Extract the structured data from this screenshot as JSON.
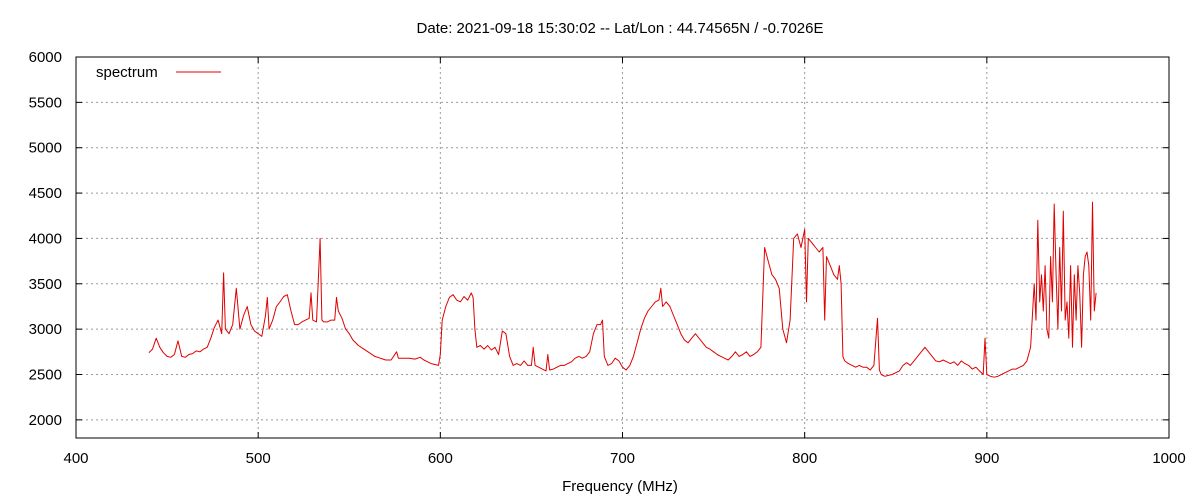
{
  "chart_data": {
    "type": "line",
    "title": "Date: 2021-09-18 15:30:02  --  Lat/Lon : 44.74565N / -0.7026E",
    "xlabel": "Frequency (MHz)",
    "ylabel": "",
    "xlim": [
      400,
      1000
    ],
    "ylim": [
      1800,
      6000
    ],
    "x_ticks": [
      400,
      500,
      600,
      700,
      800,
      900,
      1000
    ],
    "y_ticks": [
      2000,
      2500,
      3000,
      3500,
      4000,
      4500,
      5000,
      5500,
      6000
    ],
    "grid": true,
    "legend_position": "top-left",
    "series": [
      {
        "name": "spectrum",
        "color": "#e00000",
        "points": [
          [
            440,
            2740
          ],
          [
            442,
            2780
          ],
          [
            444,
            2900
          ],
          [
            446,
            2800
          ],
          [
            448,
            2740
          ],
          [
            450,
            2700
          ],
          [
            452,
            2690
          ],
          [
            454,
            2720
          ],
          [
            456,
            2870
          ],
          [
            458,
            2700
          ],
          [
            460,
            2690
          ],
          [
            462,
            2720
          ],
          [
            464,
            2730
          ],
          [
            466,
            2760
          ],
          [
            468,
            2750
          ],
          [
            470,
            2780
          ],
          [
            472,
            2800
          ],
          [
            474,
            2900
          ],
          [
            476,
            3020
          ],
          [
            478,
            3100
          ],
          [
            480,
            2950
          ],
          [
            481,
            3620
          ],
          [
            482,
            3000
          ],
          [
            484,
            2950
          ],
          [
            486,
            3050
          ],
          [
            488,
            3450
          ],
          [
            490,
            3000
          ],
          [
            492,
            3150
          ],
          [
            494,
            3250
          ],
          [
            496,
            3050
          ],
          [
            498,
            2980
          ],
          [
            500,
            2950
          ],
          [
            502,
            2920
          ],
          [
            504,
            3150
          ],
          [
            505,
            3350
          ],
          [
            506,
            3000
          ],
          [
            508,
            3100
          ],
          [
            510,
            3250
          ],
          [
            512,
            3300
          ],
          [
            514,
            3360
          ],
          [
            516,
            3380
          ],
          [
            518,
            3200
          ],
          [
            520,
            3050
          ],
          [
            522,
            3050
          ],
          [
            524,
            3080
          ],
          [
            526,
            3100
          ],
          [
            528,
            3120
          ],
          [
            529,
            3400
          ],
          [
            530,
            3100
          ],
          [
            532,
            3080
          ],
          [
            534,
            4000
          ],
          [
            535,
            3100
          ],
          [
            536,
            3080
          ],
          [
            538,
            3080
          ],
          [
            540,
            3100
          ],
          [
            542,
            3100
          ],
          [
            543,
            3350
          ],
          [
            544,
            3200
          ],
          [
            546,
            3120
          ],
          [
            548,
            3000
          ],
          [
            550,
            2950
          ],
          [
            552,
            2880
          ],
          [
            555,
            2820
          ],
          [
            558,
            2780
          ],
          [
            561,
            2740
          ],
          [
            564,
            2700
          ],
          [
            567,
            2680
          ],
          [
            570,
            2660
          ],
          [
            573,
            2660
          ],
          [
            576,
            2750
          ],
          [
            577,
            2680
          ],
          [
            580,
            2680
          ],
          [
            583,
            2680
          ],
          [
            586,
            2670
          ],
          [
            589,
            2690
          ],
          [
            591,
            2660
          ],
          [
            593,
            2640
          ],
          [
            595,
            2620
          ],
          [
            597,
            2610
          ],
          [
            599,
            2600
          ],
          [
            600,
            2720
          ],
          [
            601,
            3100
          ],
          [
            603,
            3250
          ],
          [
            605,
            3350
          ],
          [
            607,
            3380
          ],
          [
            609,
            3320
          ],
          [
            611,
            3300
          ],
          [
            613,
            3360
          ],
          [
            615,
            3320
          ],
          [
            617,
            3400
          ],
          [
            618,
            3350
          ],
          [
            619,
            3000
          ],
          [
            620,
            2800
          ],
          [
            622,
            2820
          ],
          [
            624,
            2780
          ],
          [
            626,
            2820
          ],
          [
            628,
            2770
          ],
          [
            630,
            2800
          ],
          [
            632,
            2720
          ],
          [
            634,
            2980
          ],
          [
            636,
            2950
          ],
          [
            638,
            2700
          ],
          [
            640,
            2600
          ],
          [
            642,
            2620
          ],
          [
            644,
            2600
          ],
          [
            646,
            2650
          ],
          [
            648,
            2600
          ],
          [
            650,
            2600
          ],
          [
            651,
            2800
          ],
          [
            652,
            2600
          ],
          [
            654,
            2580
          ],
          [
            656,
            2560
          ],
          [
            658,
            2540
          ],
          [
            659,
            2720
          ],
          [
            660,
            2550
          ],
          [
            662,
            2560
          ],
          [
            664,
            2580
          ],
          [
            666,
            2600
          ],
          [
            668,
            2600
          ],
          [
            670,
            2620
          ],
          [
            672,
            2640
          ],
          [
            674,
            2680
          ],
          [
            676,
            2700
          ],
          [
            678,
            2680
          ],
          [
            680,
            2700
          ],
          [
            682,
            2750
          ],
          [
            684,
            2950
          ],
          [
            686,
            3050
          ],
          [
            688,
            3050
          ],
          [
            689,
            3100
          ],
          [
            690,
            2700
          ],
          [
            692,
            2600
          ],
          [
            694,
            2620
          ],
          [
            696,
            2680
          ],
          [
            698,
            2650
          ],
          [
            700,
            2580
          ],
          [
            702,
            2550
          ],
          [
            704,
            2600
          ],
          [
            706,
            2700
          ],
          [
            708,
            2850
          ],
          [
            710,
            3000
          ],
          [
            712,
            3120
          ],
          [
            714,
            3200
          ],
          [
            716,
            3250
          ],
          [
            718,
            3300
          ],
          [
            720,
            3320
          ],
          [
            721,
            3450
          ],
          [
            722,
            3250
          ],
          [
            724,
            3300
          ],
          [
            726,
            3250
          ],
          [
            728,
            3150
          ],
          [
            730,
            3050
          ],
          [
            732,
            2950
          ],
          [
            734,
            2880
          ],
          [
            736,
            2850
          ],
          [
            738,
            2900
          ],
          [
            740,
            2950
          ],
          [
            742,
            2900
          ],
          [
            744,
            2850
          ],
          [
            746,
            2800
          ],
          [
            748,
            2780
          ],
          [
            750,
            2750
          ],
          [
            752,
            2720
          ],
          [
            754,
            2700
          ],
          [
            756,
            2680
          ],
          [
            758,
            2660
          ],
          [
            760,
            2700
          ],
          [
            762,
            2750
          ],
          [
            764,
            2700
          ],
          [
            766,
            2720
          ],
          [
            768,
            2750
          ],
          [
            770,
            2700
          ],
          [
            772,
            2720
          ],
          [
            774,
            2750
          ],
          [
            776,
            2800
          ],
          [
            778,
            3900
          ],
          [
            780,
            3750
          ],
          [
            782,
            3600
          ],
          [
            784,
            3550
          ],
          [
            786,
            3450
          ],
          [
            788,
            3000
          ],
          [
            790,
            2850
          ],
          [
            792,
            3100
          ],
          [
            794,
            4000
          ],
          [
            796,
            4050
          ],
          [
            798,
            3900
          ],
          [
            800,
            4100
          ],
          [
            801,
            3300
          ],
          [
            802,
            4000
          ],
          [
            804,
            3950
          ],
          [
            806,
            3900
          ],
          [
            808,
            3850
          ],
          [
            810,
            3900
          ],
          [
            811,
            3100
          ],
          [
            812,
            3800
          ],
          [
            814,
            3700
          ],
          [
            816,
            3600
          ],
          [
            818,
            3550
          ],
          [
            819,
            3700
          ],
          [
            820,
            3500
          ],
          [
            821,
            2700
          ],
          [
            822,
            2650
          ],
          [
            824,
            2620
          ],
          [
            826,
            2600
          ],
          [
            828,
            2580
          ],
          [
            830,
            2600
          ],
          [
            832,
            2580
          ],
          [
            834,
            2580
          ],
          [
            836,
            2550
          ],
          [
            838,
            2600
          ],
          [
            840,
            3120
          ],
          [
            841,
            2550
          ],
          [
            842,
            2500
          ],
          [
            844,
            2480
          ],
          [
            846,
            2490
          ],
          [
            848,
            2500
          ],
          [
            850,
            2520
          ],
          [
            852,
            2540
          ],
          [
            854,
            2600
          ],
          [
            856,
            2630
          ],
          [
            858,
            2600
          ],
          [
            860,
            2650
          ],
          [
            862,
            2700
          ],
          [
            864,
            2750
          ],
          [
            866,
            2800
          ],
          [
            868,
            2750
          ],
          [
            870,
            2700
          ],
          [
            872,
            2650
          ],
          [
            874,
            2640
          ],
          [
            876,
            2660
          ],
          [
            878,
            2640
          ],
          [
            880,
            2620
          ],
          [
            882,
            2640
          ],
          [
            884,
            2600
          ],
          [
            886,
            2650
          ],
          [
            888,
            2620
          ],
          [
            890,
            2600
          ],
          [
            892,
            2560
          ],
          [
            894,
            2580
          ],
          [
            896,
            2540
          ],
          [
            898,
            2500
          ],
          [
            899,
            2900
          ],
          [
            900,
            2500
          ],
          [
            902,
            2480
          ],
          [
            904,
            2470
          ],
          [
            906,
            2480
          ],
          [
            908,
            2500
          ],
          [
            910,
            2520
          ],
          [
            912,
            2540
          ],
          [
            914,
            2560
          ],
          [
            916,
            2560
          ],
          [
            918,
            2580
          ],
          [
            920,
            2600
          ],
          [
            922,
            2650
          ],
          [
            924,
            2800
          ],
          [
            926,
            3500
          ],
          [
            927,
            3100
          ],
          [
            928,
            4200
          ],
          [
            929,
            3300
          ],
          [
            930,
            3600
          ],
          [
            931,
            3200
          ],
          [
            932,
            3700
          ],
          [
            933,
            3000
          ],
          [
            934,
            2900
          ],
          [
            935,
            3800
          ],
          [
            936,
            3300
          ],
          [
            937,
            4380
          ],
          [
            938,
            3600
          ],
          [
            939,
            3000
          ],
          [
            940,
            3900
          ],
          [
            941,
            3200
          ],
          [
            942,
            4300
          ],
          [
            943,
            3100
          ],
          [
            944,
            3300
          ],
          [
            945,
            2900
          ],
          [
            946,
            3700
          ],
          [
            947,
            2800
          ],
          [
            948,
            3600
          ],
          [
            949,
            3100
          ],
          [
            950,
            3700
          ],
          [
            951,
            3400
          ],
          [
            952,
            2800
          ],
          [
            953,
            3600
          ],
          [
            954,
            3800
          ],
          [
            955,
            3850
          ],
          [
            956,
            3700
          ],
          [
            957,
            3100
          ],
          [
            958,
            4400
          ],
          [
            959,
            3200
          ],
          [
            960,
            3400
          ]
        ]
      }
    ]
  }
}
